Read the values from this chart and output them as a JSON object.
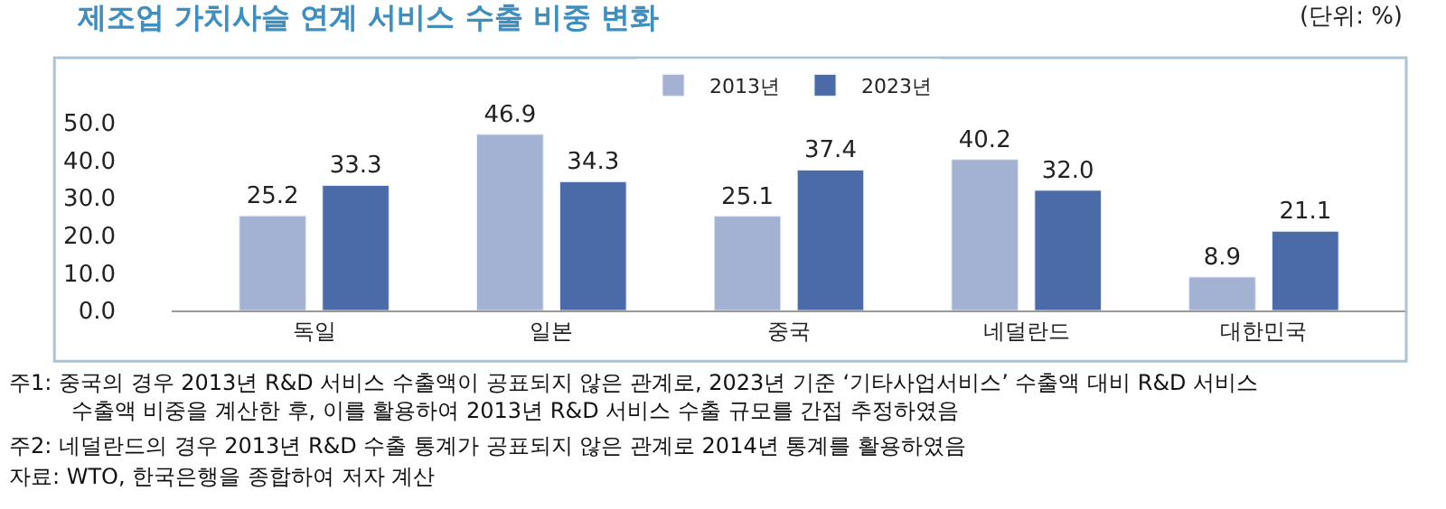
{
  "chart_data": {
    "type": "bar",
    "title": "제조업 가치사슬 연계 서비스 수출 비중 변화",
    "subtitle": "(단위: %)",
    "categories": [
      "독일",
      "일본",
      "중국",
      "네덜란드",
      "대한민국"
    ],
    "series": [
      {
        "name": "2013년",
        "color": "#a3b1d3",
        "values": [
          25.2,
          46.9,
          25.1,
          40.2,
          8.9
        ],
        "value_labels": [
          "25.2",
          "46.9",
          "25.1",
          "40.2",
          "8.9"
        ]
      },
      {
        "name": "2023년",
        "color": "#4a6ba8",
        "values": [
          33.3,
          34.3,
          37.4,
          32.0,
          21.1
        ],
        "value_labels": [
          "33.3",
          "34.3",
          "37.4",
          "32.0",
          "21.1"
        ]
      }
    ],
    "ylim": [
      0,
      50
    ],
    "yticks": [
      {
        "value": 0,
        "label": "0.0"
      },
      {
        "value": 10,
        "label": "10.0"
      },
      {
        "value": 20,
        "label": "20.0"
      },
      {
        "value": 30,
        "label": "30.0"
      },
      {
        "value": 40,
        "label": "40.0"
      },
      {
        "value": 50,
        "label": "50.0"
      }
    ],
    "legend": "top",
    "annotations": [
      "주1: 중국의 경우 2013년 R&D 서비스 수출액이 공표되지 않은 관계로, 2023년 기준 ‘기타사업서비스’ 수출액 대비 R&D 서비스 수출액 비중을 계산한 후, 이를 활용하여 2013년 R&D 서비스 수출 규모를 간접 추정하였음",
      "주2: 네덜란드의 경우 2013년 R&D 수출 통계가 공표되지 않은 관계로 2014년 통계를 활용하였음",
      "자료: WTO, 한국은행을 종합하여 저자 계산"
    ]
  }
}
